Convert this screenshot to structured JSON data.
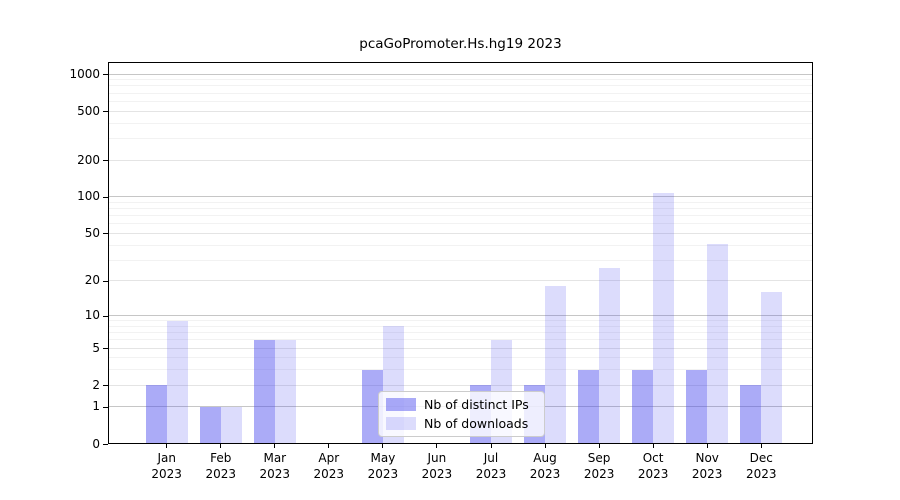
{
  "figure": {
    "background": "#ffffff"
  },
  "chart_data": {
    "type": "bar",
    "title": "pcaGoPromoter.Hs.hg19 2023",
    "categories": [
      "Jan 2023",
      "Feb 2023",
      "Mar 2023",
      "Apr 2023",
      "May 2023",
      "Jun 2023",
      "Jul 2023",
      "Aug 2023",
      "Sep 2023",
      "Oct 2023",
      "Nov 2023",
      "Dec 2023"
    ],
    "x_tick_line1": [
      "Jan",
      "Feb",
      "Mar",
      "Apr",
      "May",
      "Jun",
      "Jul",
      "Aug",
      "Sep",
      "Oct",
      "Nov",
      "Dec"
    ],
    "x_tick_line2": "2023",
    "series": [
      {
        "name": "Nb of distinct IPs",
        "color": "#a6a6f5",
        "fill": "rgba(68,68,238,0.45)",
        "values": [
          2,
          1,
          6,
          0,
          3,
          0,
          2,
          2,
          3,
          3,
          3,
          2
        ]
      },
      {
        "name": "Nb of downloads",
        "color": "#dcdcf9",
        "fill": "rgba(68,68,238,0.19)",
        "values": [
          9,
          1,
          6,
          0,
          8,
          0,
          6,
          18,
          26,
          108,
          41,
          16
        ]
      }
    ],
    "y_axis": {
      "scale": "log1p",
      "ticks": [
        0,
        1,
        2,
        5,
        10,
        20,
        50,
        100,
        200,
        500,
        1000
      ],
      "major_gridlines": [
        1,
        10,
        100,
        1000
      ],
      "sub_gridlines": [
        2,
        5,
        20,
        50,
        200,
        500
      ],
      "minor_gridlines": [
        3,
        4,
        6,
        7,
        8,
        9,
        30,
        40,
        60,
        70,
        80,
        90,
        300,
        400,
        600,
        700,
        800,
        900
      ],
      "range": [
        0,
        1000
      ]
    },
    "xlabel": "",
    "ylabel": "",
    "grid": true,
    "legend_position": "lower-center"
  }
}
